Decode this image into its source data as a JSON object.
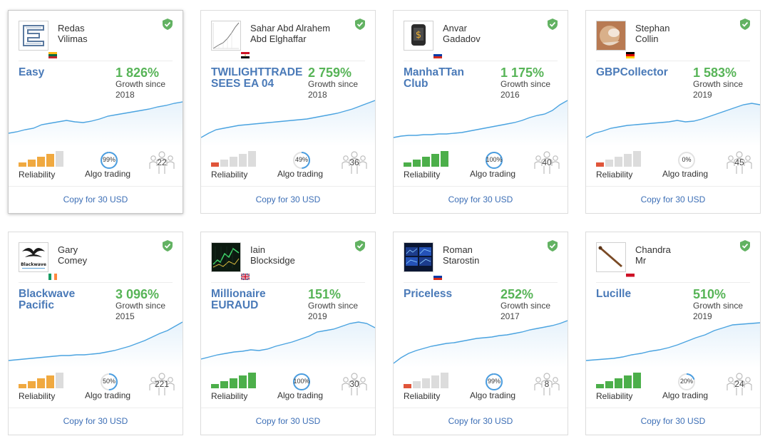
{
  "colors": {
    "signal_name": "#4a7ab8",
    "growth": "#57b457",
    "link": "#3d6fb6",
    "chart_line": "#4aa3e0",
    "chart_fill": "#e6f2fb",
    "shield": "#62b262",
    "reliability_low": "#e0553a",
    "reliability_mid": "#f0a940",
    "reliability_high": "#4caf4a",
    "reliability_empty": "#dcdcdc"
  },
  "signals": [
    {
      "author_first": "Redas",
      "author_last": "Vilimas",
      "avatar_icon": "maze-logo-icon",
      "flag_icon": "lithuania-flag-icon",
      "signal_line1": "Easy",
      "signal_line2": "",
      "growth": "1 826%",
      "growth_label": "Growth since",
      "growth_year": "2018",
      "reliability_level": 4,
      "reliability_color": "mid",
      "reliability_label": "Reliability",
      "algo_pct": "99%",
      "algo_fraction": 0.99,
      "algo_label": "Algo trading",
      "subscribers": "22",
      "chart": [
        52,
        50,
        47,
        45,
        40,
        38,
        36,
        34,
        36,
        37,
        35,
        32,
        28,
        26,
        24,
        22,
        20,
        18,
        15,
        13,
        10,
        8
      ],
      "copy_label": "Copy for 30 USD"
    },
    {
      "author_first": "Sahar Abd Alrahem",
      "author_last": "Abd Elghaffar",
      "avatar_icon": "growth-chart-avatar-icon",
      "flag_icon": "egypt-flag-icon",
      "signal_line1": "TWILIGHTTRADE",
      "signal_line2": "SEES EA 04",
      "growth": "2 759%",
      "growth_label": "Growth since",
      "growth_year": "2018",
      "reliability_level": 1,
      "reliability_color": "low",
      "reliability_label": "Reliability",
      "algo_pct": "49%",
      "algo_fraction": 0.49,
      "algo_label": "Algo trading",
      "subscribers": "36",
      "chart": [
        58,
        52,
        47,
        45,
        43,
        41,
        40,
        39,
        38,
        37,
        36,
        35,
        34,
        33,
        32,
        30,
        28,
        26,
        24,
        21,
        18,
        14,
        10,
        6
      ],
      "copy_label": "Copy for 30 USD"
    },
    {
      "author_first": "Anvar",
      "author_last": "Gadadov",
      "avatar_icon": "dollar-phone-avatar-icon",
      "flag_icon": "russia-flag-icon",
      "signal_line1": "ManhaTTan Club",
      "signal_line2": "",
      "growth": "1 175%",
      "growth_label": "Growth since",
      "growth_year": "2016",
      "reliability_level": 5,
      "reliability_color": "high",
      "reliability_label": "Reliability",
      "algo_pct": "100%",
      "algo_fraction": 1.0,
      "algo_label": "Algo trading",
      "subscribers": "40",
      "chart": [
        58,
        56,
        55,
        55,
        54,
        54,
        53,
        53,
        52,
        51,
        49,
        47,
        45,
        43,
        41,
        39,
        37,
        34,
        30,
        27,
        25,
        20,
        12,
        6
      ],
      "copy_label": "Copy for 30 USD"
    },
    {
      "author_first": "Stephan",
      "author_last": "Collin",
      "avatar_icon": "photo-avatar-icon",
      "flag_icon": "germany-flag-icon",
      "signal_line1": "GBPCollector",
      "signal_line2": "",
      "growth": "1 583%",
      "growth_label": "Growth since",
      "growth_year": "2019",
      "reliability_level": 1,
      "reliability_color": "low",
      "reliability_label": "Reliability",
      "algo_pct": "0%",
      "algo_fraction": 0.0,
      "algo_label": "Algo trading",
      "subscribers": "45",
      "chart": [
        58,
        52,
        49,
        45,
        43,
        41,
        40,
        39,
        38,
        37,
        36,
        34,
        36,
        35,
        32,
        28,
        24,
        20,
        16,
        12,
        10,
        12
      ],
      "copy_label": "Copy for 30 USD"
    },
    {
      "author_first": "Gary",
      "author_last": "Comey",
      "avatar_icon": "blackwave-logo-icon",
      "flag_icon": "ireland-flag-icon",
      "signal_line1": "Blackwave",
      "signal_line2": "Pacific",
      "growth": "3 096%",
      "growth_label": "Growth since",
      "growth_year": "2015",
      "reliability_level": 4,
      "reliability_color": "mid",
      "reliability_label": "Reliability",
      "algo_pct": "50%",
      "algo_fraction": 0.5,
      "algo_label": "Algo trading",
      "subscribers": "221",
      "chart": [
        60,
        59,
        58,
        57,
        56,
        55,
        54,
        53,
        53,
        52,
        52,
        51,
        50,
        48,
        46,
        43,
        40,
        36,
        32,
        27,
        22,
        18,
        12,
        6
      ],
      "copy_label": "Copy for 30 USD"
    },
    {
      "author_first": "Iain",
      "author_last": "Blocksidge",
      "avatar_icon": "trading-screen-avatar-icon",
      "flag_icon": "uk-flag-icon",
      "signal_line1": "Millionaire",
      "signal_line2": "EURAUD",
      "growth": "151%",
      "growth_label": "Growth since",
      "growth_year": "2019",
      "reliability_level": 5,
      "reliability_color": "high",
      "reliability_label": "Reliability",
      "algo_pct": "100%",
      "algo_fraction": 1.0,
      "algo_label": "Algo trading",
      "subscribers": "30",
      "chart": [
        58,
        55,
        52,
        50,
        48,
        47,
        45,
        46,
        44,
        40,
        37,
        34,
        30,
        26,
        20,
        18,
        16,
        12,
        8,
        6,
        8,
        14
      ],
      "copy_label": "Copy for 30 USD"
    },
    {
      "author_first": "Roman",
      "author_last": "Starostin",
      "avatar_icon": "monitors-avatar-icon",
      "flag_icon": "russia-flag-icon",
      "signal_line1": "Priceless",
      "signal_line2": "",
      "growth": "252%",
      "growth_label": "Growth since",
      "growth_year": "2017",
      "reliability_level": 1,
      "reliability_color": "low",
      "reliability_label": "Reliability",
      "algo_pct": "99%",
      "algo_fraction": 0.99,
      "algo_label": "Algo trading",
      "subscribers": "8",
      "chart": [
        64,
        56,
        50,
        46,
        43,
        40,
        38,
        36,
        35,
        33,
        31,
        29,
        28,
        27,
        25,
        24,
        22,
        20,
        17,
        15,
        13,
        11,
        8,
        4
      ],
      "copy_label": "Copy for 30 USD"
    },
    {
      "author_first": "Chandra",
      "author_last": "Mr",
      "avatar_icon": "bat-avatar-icon",
      "flag_icon": "indonesia-flag-icon",
      "signal_line1": "Lucille",
      "signal_line2": "",
      "growth": "510%",
      "growth_label": "Growth since",
      "growth_year": "2019",
      "reliability_level": 5,
      "reliability_color": "high",
      "reliability_label": "Reliability",
      "algo_pct": "20%",
      "algo_fraction": 0.2,
      "algo_label": "Algo trading",
      "subscribers": "24",
      "chart": [
        60,
        59,
        58,
        57,
        55,
        52,
        50,
        47,
        45,
        42,
        38,
        33,
        28,
        24,
        18,
        14,
        10,
        9,
        8,
        7
      ],
      "copy_label": "Copy for 30 USD"
    }
  ]
}
